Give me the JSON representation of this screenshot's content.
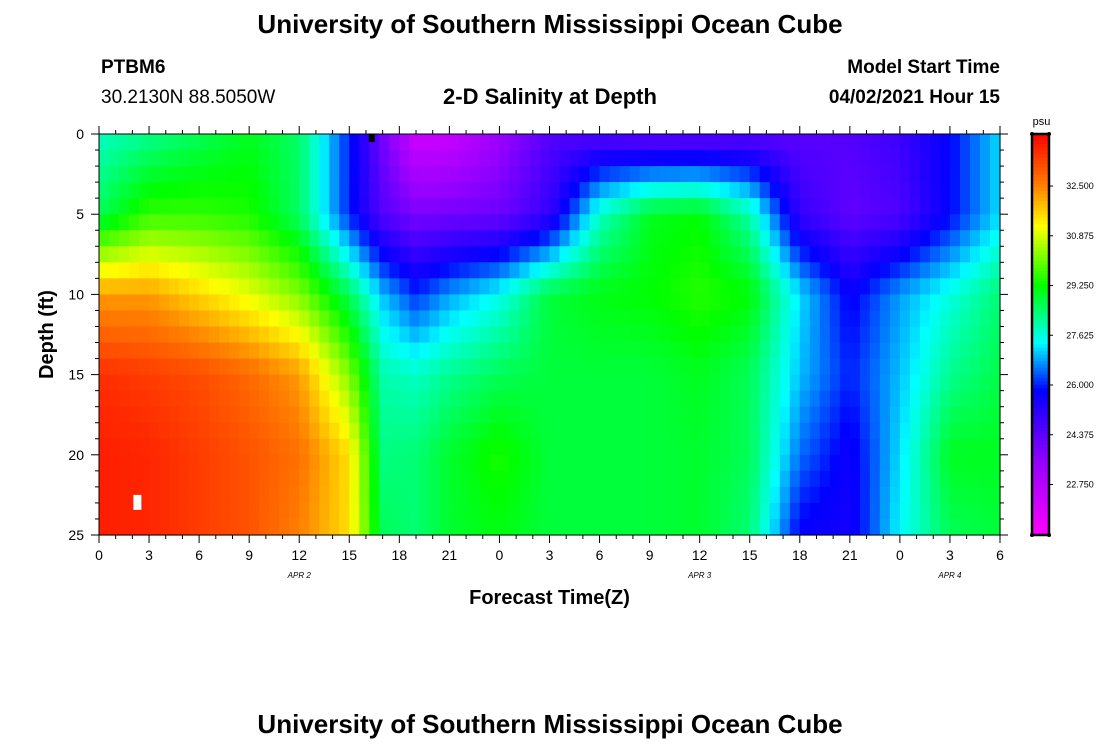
{
  "header": {
    "title": "University of Southern Mississippi Ocean Cube",
    "station": "PTBM6",
    "coordinates": "30.2130N  88.5050W",
    "plot_title": "2-D Salinity at Depth",
    "model_start_label": "Model Start Time",
    "model_start_value": "04/02/2021 Hour 15"
  },
  "footer": {
    "title": "University of Southern Mississippi Ocean Cube"
  },
  "chart_data": {
    "type": "heatmap",
    "title": "2-D Salinity at Depth",
    "xlabel": "Forecast Time(Z)",
    "ylabel": "Depth (ft)",
    "ylim": [
      0,
      25
    ],
    "y_inverted": true,
    "y_ticks": [
      "0",
      "5",
      "10",
      "15",
      "20",
      "25"
    ],
    "x_range_hours": [
      0,
      54
    ],
    "x_ticks": [
      "0",
      "3",
      "6",
      "9",
      "12",
      "15",
      "18",
      "21",
      "0",
      "3",
      "6",
      "9",
      "12",
      "15",
      "18",
      "21",
      "0",
      "3",
      "6"
    ],
    "date_labels": [
      {
        "text": "APR 2",
        "hour": 12
      },
      {
        "text": "APR 3",
        "hour": 36
      },
      {
        "text": "APR 4",
        "hour": 51
      }
    ],
    "colorbar": {
      "unit": "psu",
      "range": [
        21.1,
        34.2
      ],
      "ticks": [
        "32.500",
        "30.875",
        "29.250",
        "27.625",
        "26.000",
        "24.375",
        "22.750"
      ]
    },
    "salinity_psu": {
      "depths_ft": [
        0,
        5,
        10,
        15,
        20,
        25
      ],
      "hours": [
        0,
        3,
        6,
        9,
        12,
        15,
        17,
        19,
        21,
        24,
        27,
        30,
        33,
        36,
        39,
        42,
        45,
        48,
        51,
        54
      ],
      "values": [
        [
          27.8,
          28.2,
          28.6,
          29.0,
          28.5,
          26.0,
          24.0,
          22.2,
          22.3,
          23.3,
          24.5,
          24.5,
          24.2,
          24.2,
          24.4,
          24.4,
          24.5,
          24.9,
          25.8,
          27.2
        ],
        [
          28.6,
          29.6,
          29.6,
          29.4,
          28.5,
          26.0,
          24.5,
          23.9,
          24.0,
          24.1,
          25.0,
          27.8,
          29.0,
          29.2,
          28.0,
          25.0,
          24.3,
          24.6,
          25.8,
          27.2
        ],
        [
          32.2,
          32.2,
          31.6,
          31.0,
          30.2,
          28.6,
          27.0,
          26.1,
          26.8,
          27.5,
          28.8,
          29.1,
          29.2,
          29.5,
          29.2,
          27.2,
          25.7,
          26.8,
          27.6,
          28.4
        ],
        [
          33.6,
          33.4,
          33.2,
          32.8,
          32.2,
          30.2,
          28.0,
          27.8,
          28.2,
          28.6,
          28.8,
          28.8,
          28.8,
          29.0,
          28.6,
          27.0,
          26.0,
          27.0,
          28.2,
          28.7
        ],
        [
          33.8,
          33.7,
          33.4,
          33.1,
          32.7,
          31.5,
          28.3,
          28.4,
          28.9,
          29.4,
          28.8,
          28.8,
          28.8,
          28.9,
          28.6,
          26.5,
          25.6,
          27.2,
          29.0,
          29.0
        ],
        [
          33.8,
          33.7,
          33.4,
          33.1,
          32.5,
          31.5,
          28.6,
          28.4,
          28.9,
          29.1,
          28.8,
          28.8,
          28.8,
          28.9,
          28.4,
          25.7,
          25.5,
          27.4,
          28.6,
          28.8
        ]
      ]
    }
  }
}
